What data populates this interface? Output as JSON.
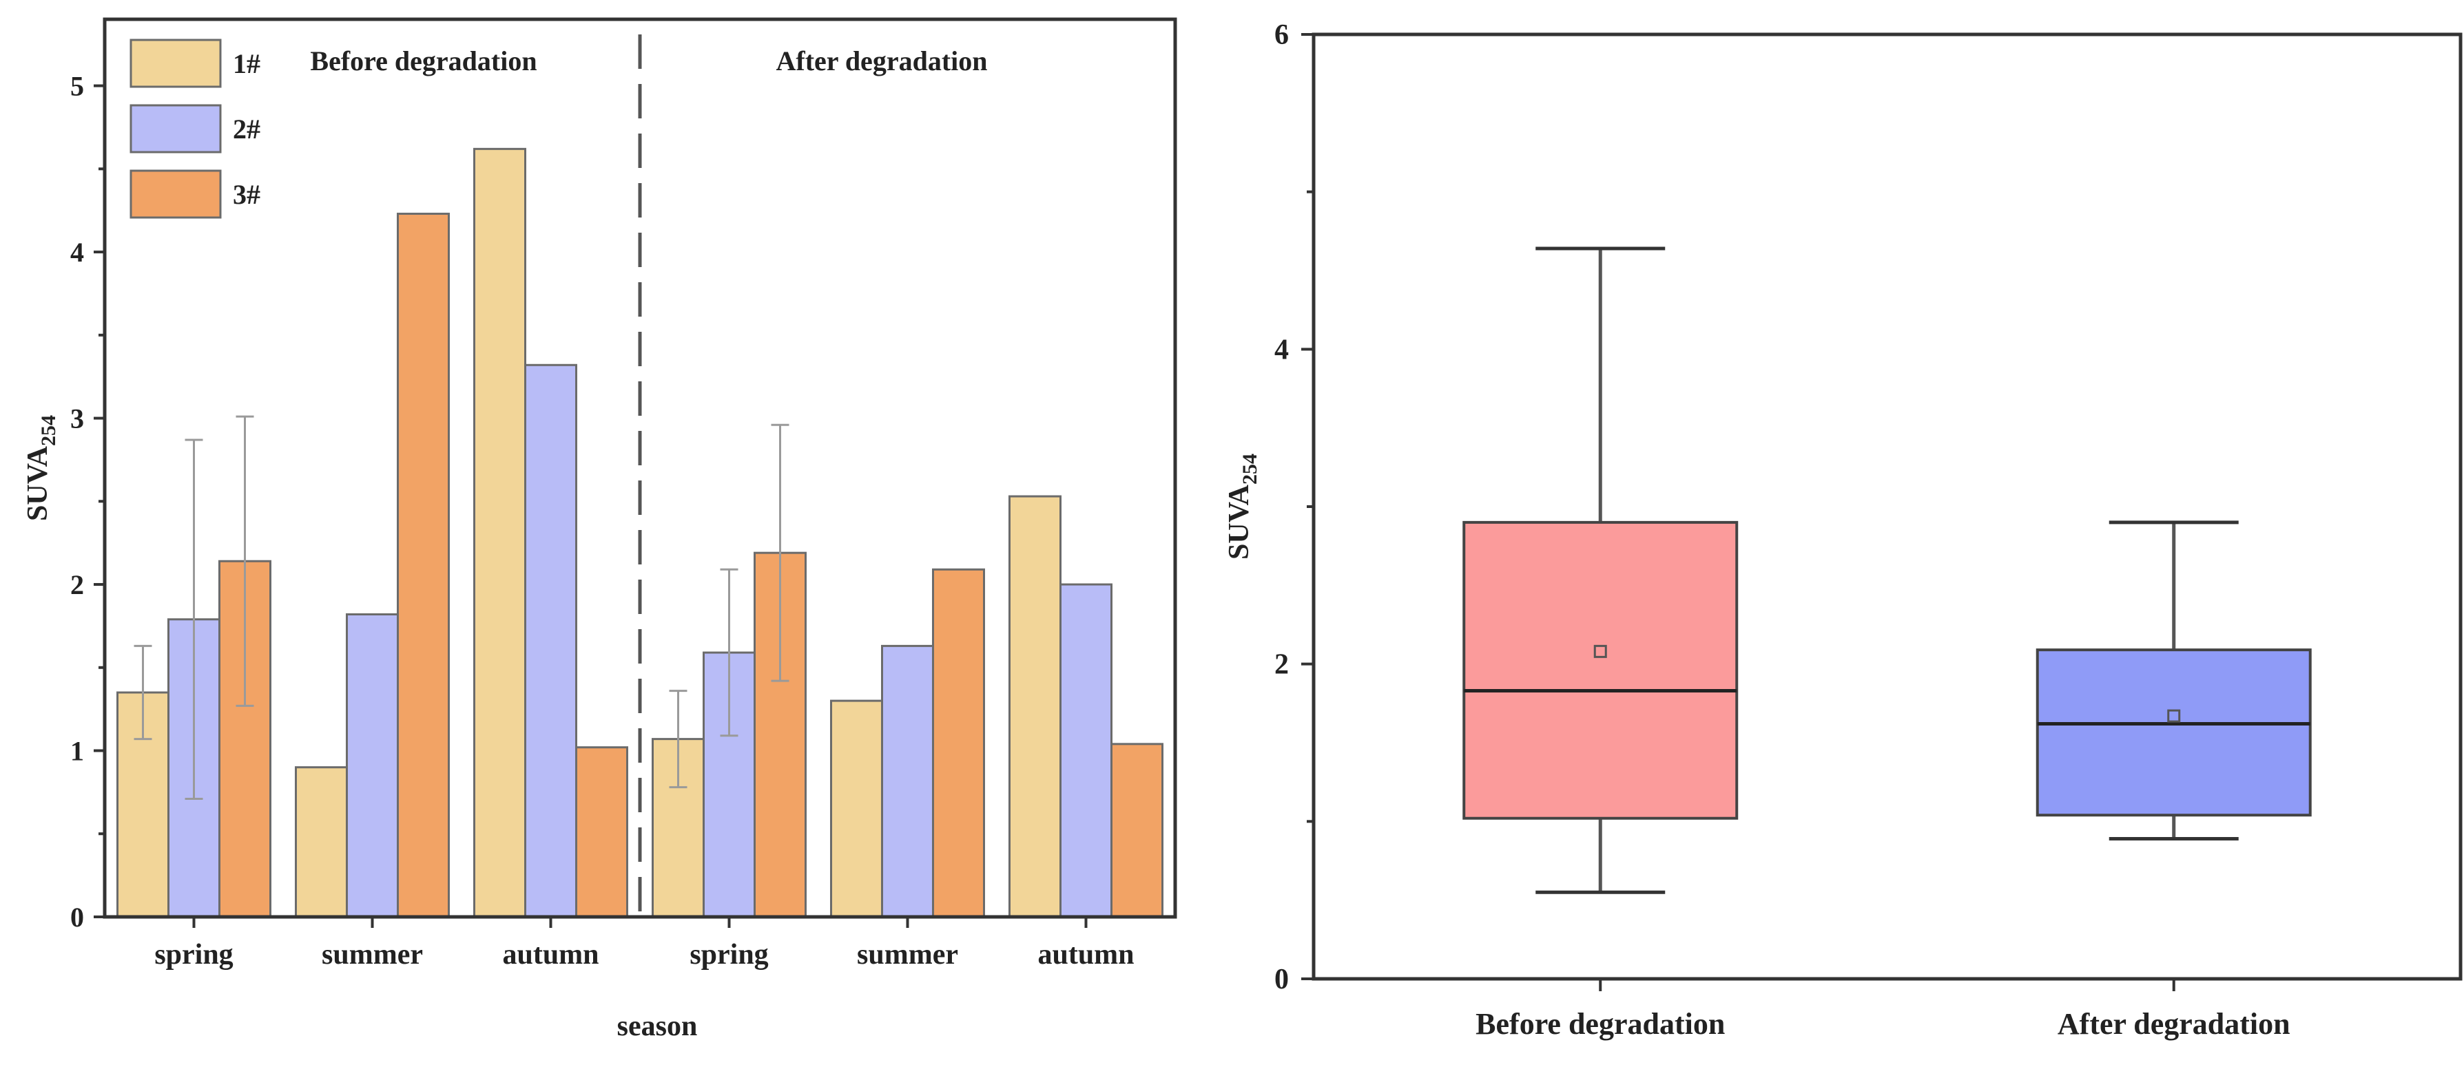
{
  "chart_data": [
    {
      "type": "bar",
      "xlabel": "season",
      "ylabel": "SUVA",
      "ylabel_subscript": "254",
      "ylim": [
        0,
        5.4
      ],
      "yticks": [
        0,
        1,
        2,
        3,
        4,
        5
      ],
      "categories": [
        "spring",
        "summer",
        "autumn",
        "spring",
        "summer",
        "autumn"
      ],
      "group_labels": [
        "Before degradation",
        "After degradation"
      ],
      "colors": [
        "#f2d598",
        "#b8bcf7",
        "#f2a365"
      ],
      "series": [
        {
          "name": "1#",
          "values": [
            1.35,
            0.9,
            4.62,
            1.07,
            1.3,
            2.53
          ],
          "errors": [
            0.28,
            null,
            null,
            0.29,
            null,
            null
          ]
        },
        {
          "name": "2#",
          "values": [
            1.79,
            1.82,
            3.32,
            1.59,
            1.63,
            2.0
          ],
          "errors": [
            1.08,
            null,
            null,
            0.5,
            null,
            null
          ]
        },
        {
          "name": "3#",
          "values": [
            2.14,
            4.23,
            1.02,
            2.19,
            2.09,
            1.04
          ],
          "errors": [
            0.87,
            null,
            null,
            0.77,
            null,
            null
          ]
        }
      ],
      "legend": "top-left"
    },
    {
      "type": "box",
      "ylabel": "SUVA",
      "ylabel_subscript": "254",
      "ylim": [
        0,
        6
      ],
      "yticks": [
        0,
        2,
        4,
        6
      ],
      "categories": [
        "Before degradation",
        "After degradation"
      ],
      "colors": [
        "#fb9b9b",
        "#8f9bf7"
      ],
      "boxes": [
        {
          "name": "Before degradation",
          "min": 0.55,
          "q1": 1.02,
          "median": 1.83,
          "q3": 2.9,
          "max": 4.64,
          "mean": 2.08
        },
        {
          "name": "After degradation",
          "min": 0.89,
          "q1": 1.04,
          "median": 1.62,
          "q3": 2.09,
          "max": 2.9,
          "mean": 1.67
        }
      ]
    }
  ]
}
